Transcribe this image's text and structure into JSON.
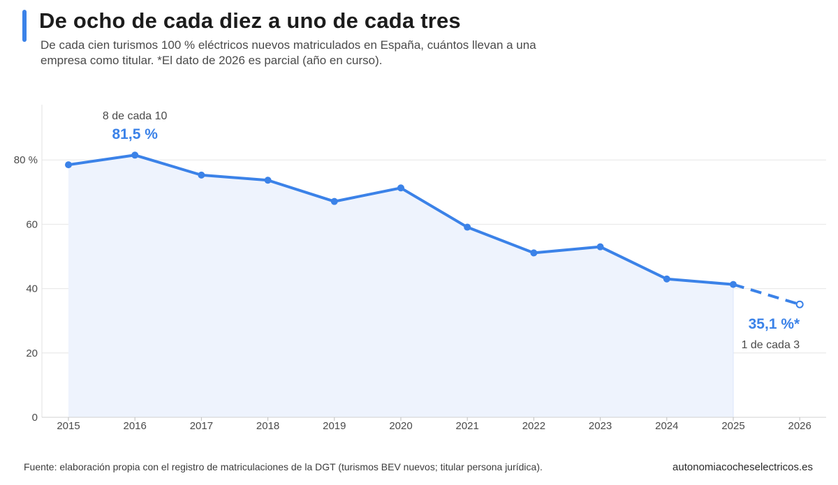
{
  "header": {
    "title": "De ocho de cada diez a uno de cada tres",
    "subtitle": "De cada cien turismos 100 % eléctricos nuevos matriculados en España, cuántos llevan a una empresa como titular. *El dato de 2026 es parcial (año en curso)."
  },
  "chart_data": {
    "type": "line",
    "x": [
      "2015",
      "2016",
      "2017",
      "2018",
      "2019",
      "2020",
      "2021",
      "2022",
      "2023",
      "2024",
      "2025",
      "2026"
    ],
    "series": [
      {
        "values": [
          78.5,
          81.5,
          75.3,
          73.7,
          67.1,
          71.3,
          59.1,
          51.1,
          53.0,
          43.0,
          41.3,
          35.1
        ]
      }
    ],
    "ylim": [
      0,
      100
    ],
    "yticks": [
      0,
      20,
      40,
      60,
      80
    ],
    "ytick_labels": [
      "0",
      "20",
      "40",
      "60",
      "80 %"
    ],
    "grid": true,
    "partial_index": 11,
    "colors": {
      "line": "#3b82e8",
      "area": "#eef3fd",
      "grid": "#e6e6e6"
    },
    "annotations": {
      "peak": {
        "caption": "8 de cada 10",
        "value_label": "81,5 %"
      },
      "last": {
        "caption": "1 de cada 3",
        "value_label": "35,1 %*"
      }
    }
  },
  "footer": {
    "source": "Fuente: elaboración propia con el registro de matriculaciones de la DGT (turismos BEV nuevos; titular persona jurídica).",
    "site": "autonomiacocheselectricos.es"
  }
}
